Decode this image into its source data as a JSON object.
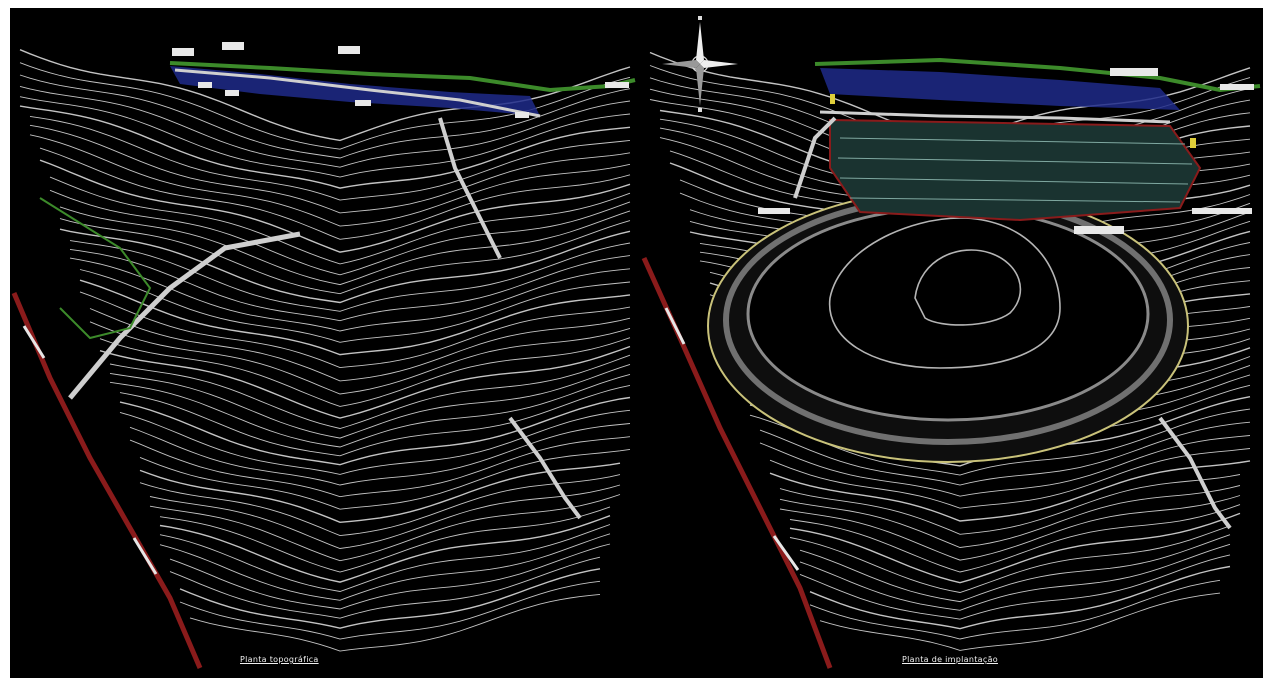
{
  "left_drawing": {
    "caption": "Planta topográfica"
  },
  "right_drawing": {
    "caption": "Planta de implantação"
  },
  "compass": {
    "icon": "north-arrow-compass-icon"
  },
  "colors": {
    "background": "#000000",
    "contour": "#d8d8d8",
    "boundary": "#8a1b1b",
    "road": "#cfcfcf",
    "vegetation": "#3c8a2a",
    "water": "#1e2a8a",
    "platform_edge": "#c9c27a",
    "pit_contour": "#b5b5b5"
  }
}
